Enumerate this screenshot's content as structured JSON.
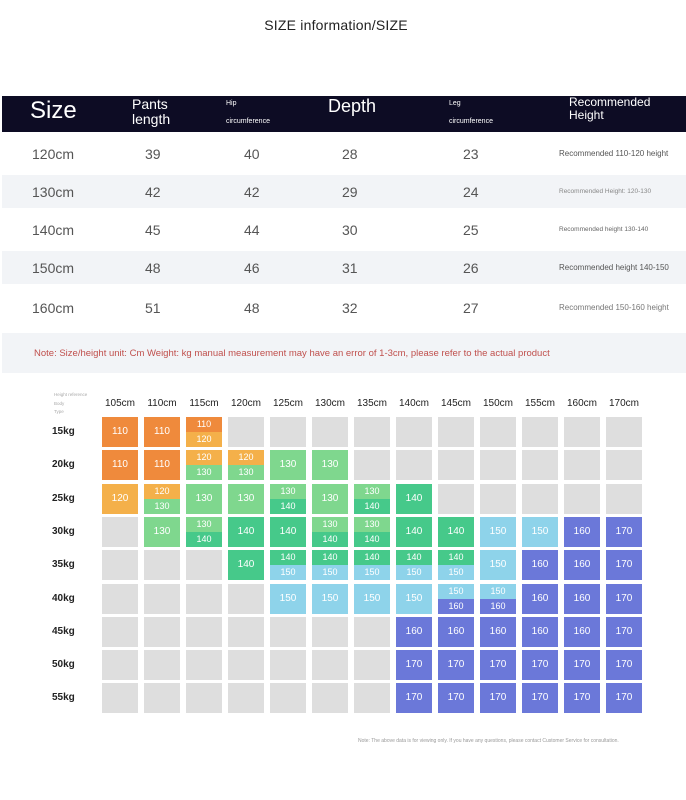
{
  "title": "SIZE information/SIZE",
  "table": {
    "headers": {
      "size": "Size",
      "pants_length": "Pants length",
      "hip_line1": "Hip",
      "hip_line2": "circumference",
      "depth": "Depth",
      "leg_line1": "Leg",
      "leg_line2": "circumference",
      "recommended": "Recommended Height"
    },
    "rows": [
      {
        "size": "120cm",
        "pants_length": "39",
        "hip": "40",
        "depth": "28",
        "leg": "23",
        "recommended": "Recommended 110-120 height"
      },
      {
        "size": "130cm",
        "pants_length": "42",
        "hip": "42",
        "depth": "29",
        "leg": "24",
        "recommended": "Recommended Height: 120-130"
      },
      {
        "size": "140cm",
        "pants_length": "45",
        "hip": "44",
        "depth": "30",
        "leg": "25",
        "recommended": "Recommended height 130-140"
      },
      {
        "size": "150cm",
        "pants_length": "48",
        "hip": "46",
        "depth": "31",
        "leg": "26",
        "recommended": "Recommended height 140-150"
      },
      {
        "size": "160cm",
        "pants_length": "51",
        "hip": "48",
        "depth": "32",
        "leg": "27",
        "recommended": "Recommended 150-160 height"
      }
    ],
    "note": "Note: Size/height unit: Cm Weight: kg manual measurement may have an error of 1-3cm, please refer to the actual product"
  },
  "grid": {
    "corner_line1": "Height reference",
    "corner_line2": "Body",
    "corner_line3": "Type",
    "heights": [
      "105cm",
      "110cm",
      "115cm",
      "120cm",
      "125cm",
      "130cm",
      "135cm",
      "140cm",
      "145cm",
      "150cm",
      "155cm",
      "160cm",
      "170cm"
    ],
    "weights": [
      "15kg",
      "20kg",
      "25kg",
      "30kg",
      "35kg",
      "40kg",
      "45kg",
      "50kg",
      "55kg"
    ],
    "colors": {
      "110": "#ef8a3c",
      "120": "#f4b04a",
      "130": "#7fd78e",
      "140": "#46c98a",
      "150": "#8ed3ea",
      "160": "#6b78d9",
      "170": "#6b78d9",
      "empty": "#dedede"
    },
    "cells": [
      [
        [
          "110"
        ],
        [
          "110"
        ],
        [
          "110",
          "120"
        ],
        [],
        [],
        [],
        [],
        [],
        [],
        [],
        [],
        [],
        []
      ],
      [
        [
          "110"
        ],
        [
          "110"
        ],
        [
          "120",
          "130"
        ],
        [
          "120",
          "130"
        ],
        [
          "130"
        ],
        [
          "130"
        ],
        [],
        [],
        [],
        [],
        [],
        [],
        []
      ],
      [
        [
          "120"
        ],
        [
          "120",
          "130"
        ],
        [
          "130"
        ],
        [
          "130"
        ],
        [
          "130",
          "140"
        ],
        [
          "130"
        ],
        [
          "130",
          "140"
        ],
        [
          "140"
        ],
        [],
        [],
        [],
        [],
        []
      ],
      [
        [],
        [
          "130"
        ],
        [
          "130",
          "140"
        ],
        [
          "140"
        ],
        [
          "140"
        ],
        [
          "130",
          "140"
        ],
        [
          "130",
          "140"
        ],
        [
          "140"
        ],
        [
          "140"
        ],
        [
          "150"
        ],
        [
          "150"
        ],
        [
          "160"
        ],
        [
          "170"
        ]
      ],
      [
        [],
        [],
        [],
        [
          "140"
        ],
        [
          "140",
          "150"
        ],
        [
          "140",
          "150"
        ],
        [
          "140",
          "150"
        ],
        [
          "140",
          "150"
        ],
        [
          "140",
          "150"
        ],
        [
          "150"
        ],
        [
          "160"
        ],
        [
          "160"
        ],
        [
          "170"
        ]
      ],
      [
        [],
        [],
        [],
        [],
        [
          "150"
        ],
        [
          "150"
        ],
        [
          "150"
        ],
        [
          "150"
        ],
        [
          "150",
          "160"
        ],
        [
          "150",
          "160"
        ],
        [
          "160"
        ],
        [
          "160"
        ],
        [
          "170"
        ]
      ],
      [
        [],
        [],
        [],
        [],
        [],
        [],
        [],
        [
          "160"
        ],
        [
          "160"
        ],
        [
          "160"
        ],
        [
          "160"
        ],
        [
          "160"
        ],
        [
          "170"
        ]
      ],
      [
        [],
        [],
        [],
        [],
        [],
        [],
        [],
        [
          "170"
        ],
        [
          "170"
        ],
        [
          "170"
        ],
        [
          "170"
        ],
        [
          "170"
        ],
        [
          "170"
        ]
      ],
      [
        [],
        [],
        [],
        [],
        [],
        [],
        [],
        [
          "170"
        ],
        [
          "170"
        ],
        [
          "170"
        ],
        [
          "170"
        ],
        [
          "170"
        ],
        [
          "170"
        ]
      ]
    ],
    "footnote": "Note: The above data is for viewing only. If you have any questions, please contact Customer Service for consultation."
  }
}
